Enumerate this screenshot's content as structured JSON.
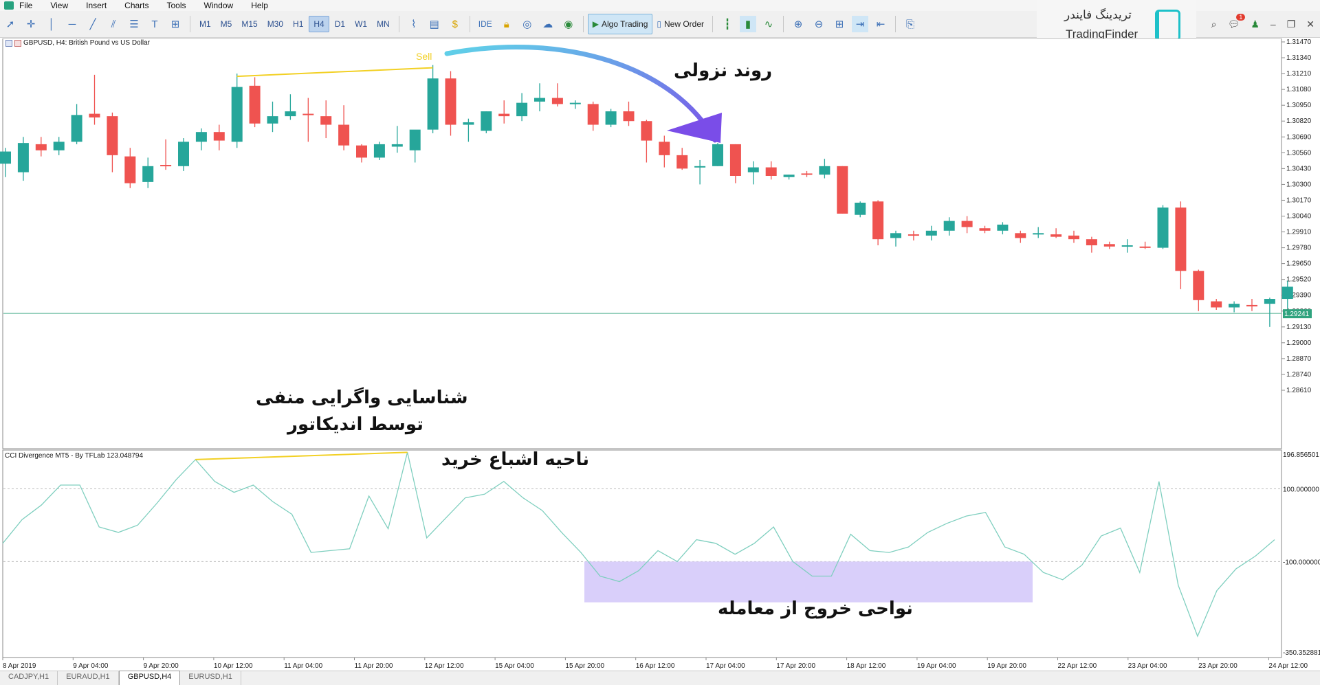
{
  "menu": [
    "File",
    "View",
    "Insert",
    "Charts",
    "Tools",
    "Window",
    "Help"
  ],
  "toolbar": {
    "timeframes": [
      "M1",
      "M5",
      "M15",
      "M30",
      "H1",
      "H4",
      "D1",
      "W1",
      "MN"
    ],
    "active_timeframe": "H4",
    "ide_label": "IDE",
    "algo_trading_label": "Algo Trading",
    "new_order_label": "New Order",
    "notification_count": "1"
  },
  "watermark": {
    "fa": "تریدینگ فایندر",
    "en": "TradingFinder"
  },
  "chart": {
    "title": "GBPUSD, H4:  British Pound vs US Dollar",
    "indicator_title": "CCI Divergence MT5 - By TFLab 123.048794",
    "current_price": "1.29241",
    "sell_label": "Sell",
    "colors": {
      "bull": "#26a69a",
      "bear": "#ef5350",
      "divergence": "#f2d024",
      "cci_line": "#7fcfbf",
      "exit_zone": "#d7ccfa",
      "arrow": "#6f6bea"
    }
  },
  "annotations": {
    "trend": "روند نزولی",
    "divergence_line1": "شناسایی واگرایی منفی",
    "divergence_line2": "توسط اندیکاتور",
    "overbought": "ناحیه اشباع خرید",
    "exit_zone": "نواحی خروج از معامله"
  },
  "price_axis": [
    "1.31470",
    "1.31340",
    "1.31210",
    "1.31080",
    "1.30950",
    "1.30820",
    "1.30690",
    "1.30560",
    "1.30430",
    "1.30300",
    "1.30170",
    "1.30040",
    "1.29910",
    "1.29780",
    "1.29650",
    "1.29520",
    "1.29390",
    "1.29260",
    "1.29130",
    "1.29000",
    "1.28870",
    "1.28740",
    "1.28610"
  ],
  "cci_axis": [
    "196.856501",
    "100.000000",
    "-100.000000",
    "-350.352881"
  ],
  "time_axis": [
    "8 Apr 2019",
    "9 Apr 04:00",
    "9 Apr 20:00",
    "10 Apr 12:00",
    "11 Apr 04:00",
    "11 Apr 20:00",
    "12 Apr 12:00",
    "15 Apr 04:00",
    "15 Apr 20:00",
    "16 Apr 12:00",
    "17 Apr 04:00",
    "17 Apr 20:00",
    "18 Apr 12:00",
    "19 Apr 04:00",
    "19 Apr 20:00",
    "22 Apr 12:00",
    "23 Apr 04:00",
    "23 Apr 20:00",
    "24 Apr 12:00"
  ],
  "tabs": [
    "CADJPY,H1",
    "EURAUD,H1",
    "GBPUSD,H4",
    "EURUSD,H1"
  ],
  "active_tab": "GBPUSD,H4",
  "candles": [
    {
      "o": 1.3047,
      "h": 1.306,
      "l": 1.3036,
      "c": 1.3057
    },
    {
      "o": 1.304,
      "h": 1.3069,
      "l": 1.3033,
      "c": 1.3064
    },
    {
      "o": 1.3063,
      "h": 1.3069,
      "l": 1.3053,
      "c": 1.3058
    },
    {
      "o": 1.3058,
      "h": 1.3069,
      "l": 1.3054,
      "c": 1.3065
    },
    {
      "o": 1.3065,
      "h": 1.3096,
      "l": 1.3063,
      "c": 1.3087
    },
    {
      "o": 1.3088,
      "h": 1.312,
      "l": 1.3079,
      "c": 1.3085
    },
    {
      "o": 1.3086,
      "h": 1.3089,
      "l": 1.304,
      "c": 1.3054
    },
    {
      "o": 1.3053,
      "h": 1.306,
      "l": 1.3027,
      "c": 1.3031
    },
    {
      "o": 1.3032,
      "h": 1.3052,
      "l": 1.3027,
      "c": 1.3045
    },
    {
      "o": 1.3046,
      "h": 1.3067,
      "l": 1.3042,
      "c": 1.3045
    },
    {
      "o": 1.3045,
      "h": 1.3068,
      "l": 1.3041,
      "c": 1.3065
    },
    {
      "o": 1.3065,
      "h": 1.3076,
      "l": 1.3058,
      "c": 1.3073
    },
    {
      "o": 1.3073,
      "h": 1.3079,
      "l": 1.3058,
      "c": 1.3066
    },
    {
      "o": 1.3065,
      "h": 1.3121,
      "l": 1.306,
      "c": 1.311
    },
    {
      "o": 1.3111,
      "h": 1.3118,
      "l": 1.3077,
      "c": 1.308
    },
    {
      "o": 1.308,
      "h": 1.3098,
      "l": 1.3073,
      "c": 1.3086
    },
    {
      "o": 1.3086,
      "h": 1.3104,
      "l": 1.3083,
      "c": 1.309
    },
    {
      "o": 1.3088,
      "h": 1.3101,
      "l": 1.3065,
      "c": 1.3087
    },
    {
      "o": 1.3086,
      "h": 1.3099,
      "l": 1.3068,
      "c": 1.3079
    },
    {
      "o": 1.3079,
      "h": 1.3095,
      "l": 1.3058,
      "c": 1.3062
    },
    {
      "o": 1.3062,
      "h": 1.3063,
      "l": 1.3048,
      "c": 1.3052
    },
    {
      "o": 1.3052,
      "h": 1.3065,
      "l": 1.305,
      "c": 1.3063
    },
    {
      "o": 1.3061,
      "h": 1.3078,
      "l": 1.3056,
      "c": 1.3063
    },
    {
      "o": 1.3058,
      "h": 1.3074,
      "l": 1.3048,
      "c": 1.3075
    },
    {
      "o": 1.3075,
      "h": 1.3128,
      "l": 1.3072,
      "c": 1.3117
    },
    {
      "o": 1.3117,
      "h": 1.3123,
      "l": 1.307,
      "c": 1.3079
    },
    {
      "o": 1.3079,
      "h": 1.3084,
      "l": 1.3065,
      "c": 1.3081
    },
    {
      "o": 1.3074,
      "h": 1.309,
      "l": 1.3072,
      "c": 1.309
    },
    {
      "o": 1.3088,
      "h": 1.3099,
      "l": 1.308,
      "c": 1.3086
    },
    {
      "o": 1.3086,
      "h": 1.3105,
      "l": 1.3082,
      "c": 1.3097
    },
    {
      "o": 1.3098,
      "h": 1.3113,
      "l": 1.309,
      "c": 1.3101
    },
    {
      "o": 1.3101,
      "h": 1.3113,
      "l": 1.3094,
      "c": 1.3096
    },
    {
      "o": 1.3096,
      "h": 1.3099,
      "l": 1.3092,
      "c": 1.3097
    },
    {
      "o": 1.3096,
      "h": 1.3098,
      "l": 1.3074,
      "c": 1.3079
    },
    {
      "o": 1.3079,
      "h": 1.3092,
      "l": 1.3077,
      "c": 1.309
    },
    {
      "o": 1.309,
      "h": 1.3098,
      "l": 1.3078,
      "c": 1.3082
    },
    {
      "o": 1.3082,
      "h": 1.3083,
      "l": 1.3048,
      "c": 1.3066
    },
    {
      "o": 1.3065,
      "h": 1.307,
      "l": 1.3044,
      "c": 1.3054
    },
    {
      "o": 1.3054,
      "h": 1.306,
      "l": 1.3042,
      "c": 1.3043
    },
    {
      "o": 1.3045,
      "h": 1.305,
      "l": 1.303,
      "c": 1.3045
    },
    {
      "o": 1.3045,
      "h": 1.3064,
      "l": 1.3045,
      "c": 1.3063
    },
    {
      "o": 1.3063,
      "h": 1.3063,
      "l": 1.3031,
      "c": 1.3037
    },
    {
      "o": 1.304,
      "h": 1.3049,
      "l": 1.303,
      "c": 1.3044
    },
    {
      "o": 1.3044,
      "h": 1.3049,
      "l": 1.3034,
      "c": 1.3037
    },
    {
      "o": 1.3036,
      "h": 1.3038,
      "l": 1.3034,
      "c": 1.3038
    },
    {
      "o": 1.3039,
      "h": 1.3041,
      "l": 1.3036,
      "c": 1.3038
    },
    {
      "o": 1.3038,
      "h": 1.3051,
      "l": 1.3035,
      "c": 1.3045
    },
    {
      "o": 1.3045,
      "h": 1.3045,
      "l": 1.3006,
      "c": 1.3006
    },
    {
      "o": 1.3005,
      "h": 1.3016,
      "l": 1.3003,
      "c": 1.3015
    },
    {
      "o": 1.3016,
      "h": 1.3017,
      "l": 1.298,
      "c": 1.2985
    },
    {
      "o": 1.2986,
      "h": 1.2992,
      "l": 1.2979,
      "c": 1.299
    },
    {
      "o": 1.2989,
      "h": 1.2992,
      "l": 1.2984,
      "c": 1.2988
    },
    {
      "o": 1.2988,
      "h": 1.2996,
      "l": 1.2984,
      "c": 1.2992
    },
    {
      "o": 1.2992,
      "h": 1.3003,
      "l": 1.2988,
      "c": 1.3
    },
    {
      "o": 1.3,
      "h": 1.3004,
      "l": 1.299,
      "c": 1.2995
    },
    {
      "o": 1.2994,
      "h": 1.2996,
      "l": 1.299,
      "c": 1.2992
    },
    {
      "o": 1.2992,
      "h": 1.2999,
      "l": 1.2989,
      "c": 1.2997
    },
    {
      "o": 1.299,
      "h": 1.2992,
      "l": 1.2982,
      "c": 1.2986
    },
    {
      "o": 1.2989,
      "h": 1.2995,
      "l": 1.2986,
      "c": 1.299
    },
    {
      "o": 1.2989,
      "h": 1.2994,
      "l": 1.2986,
      "c": 1.2987
    },
    {
      "o": 1.2988,
      "h": 1.2992,
      "l": 1.2982,
      "c": 1.2985
    },
    {
      "o": 1.2985,
      "h": 1.2987,
      "l": 1.2974,
      "c": 1.298
    },
    {
      "o": 1.2981,
      "h": 1.2983,
      "l": 1.2977,
      "c": 1.2979
    },
    {
      "o": 1.2979,
      "h": 1.2985,
      "l": 1.2974,
      "c": 1.298
    },
    {
      "o": 1.2979,
      "h": 1.2983,
      "l": 1.2977,
      "c": 1.2978
    },
    {
      "o": 1.2978,
      "h": 1.3013,
      "l": 1.2977,
      "c": 1.3011
    },
    {
      "o": 1.3011,
      "h": 1.3016,
      "l": 1.2944,
      "c": 1.2959
    },
    {
      "o": 1.2959,
      "h": 1.296,
      "l": 1.2926,
      "c": 1.2935
    },
    {
      "o": 1.2934,
      "h": 1.2936,
      "l": 1.2927,
      "c": 1.2929
    },
    {
      "o": 1.2929,
      "h": 1.2934,
      "l": 1.2925,
      "c": 1.2932
    },
    {
      "o": 1.2931,
      "h": 1.2936,
      "l": 1.2926,
      "c": 1.293
    },
    {
      "o": 1.2932,
      "h": 1.2937,
      "l": 1.2913,
      "c": 1.2936
    },
    {
      "o": 1.2936,
      "h": 1.2951,
      "l": 1.2928,
      "c": 1.2946
    }
  ],
  "cci": [
    -50,
    15,
    55,
    110,
    110,
    -5,
    -20,
    0,
    60,
    125,
    180,
    120,
    90,
    110,
    65,
    30,
    -75,
    -70,
    -65,
    80,
    -10,
    200,
    -35,
    20,
    75,
    85,
    120,
    75,
    40,
    -20,
    -75,
    -140,
    -155,
    -125,
    -70,
    -100,
    -40,
    -50,
    -80,
    -50,
    -5,
    -100,
    -140,
    -140,
    -25,
    -70,
    -75,
    -60,
    -20,
    5,
    25,
    35,
    -60,
    -80,
    -130,
    -150,
    -110,
    -30,
    -8,
    -130,
    120,
    -165,
    -305,
    -180,
    -120,
    -85,
    -40
  ],
  "sell_index": 24
}
